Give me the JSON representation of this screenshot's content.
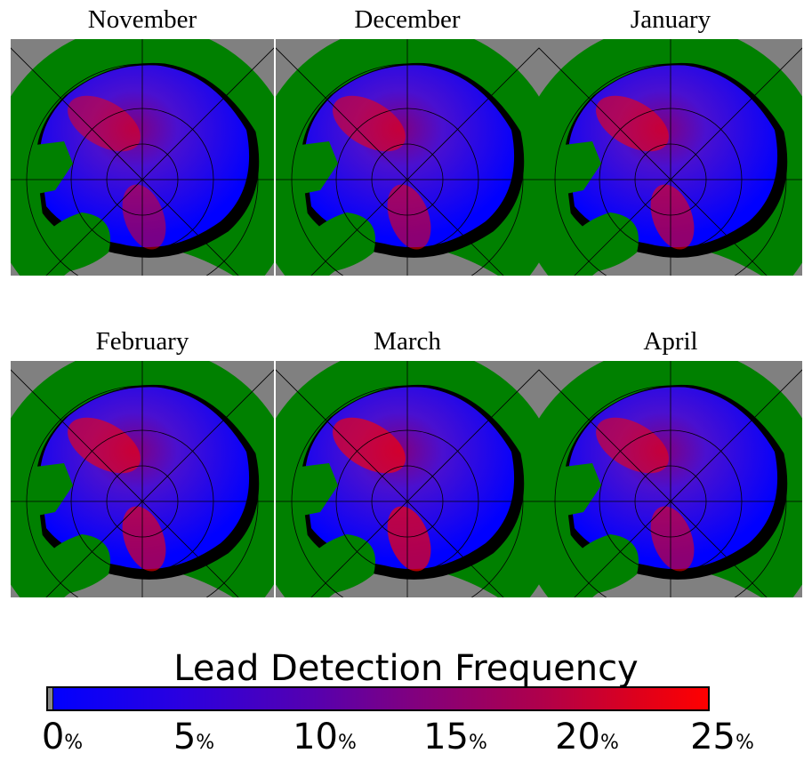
{
  "panels": [
    {
      "label": "November",
      "intensity": 0.45
    },
    {
      "label": "December",
      "intensity": 0.6
    },
    {
      "label": "January",
      "intensity": 0.65
    },
    {
      "label": "February",
      "intensity": 0.7
    },
    {
      "label": "March",
      "intensity": 0.85
    },
    {
      "label": "April",
      "intensity": 0.6
    }
  ],
  "colorbar": {
    "title": "Lead Detection Frequency",
    "ticks": [
      {
        "value": "0",
        "unit": "%"
      },
      {
        "value": "5",
        "unit": "%"
      },
      {
        "value": "10",
        "unit": "%"
      },
      {
        "value": "15",
        "unit": "%"
      },
      {
        "value": "20",
        "unit": "%"
      },
      {
        "value": "25",
        "unit": "%"
      }
    ],
    "colors": {
      "low": "#0000ff",
      "mid": "#800080",
      "high": "#ff0000",
      "land": "#008000",
      "ocean": "#808080"
    }
  }
}
